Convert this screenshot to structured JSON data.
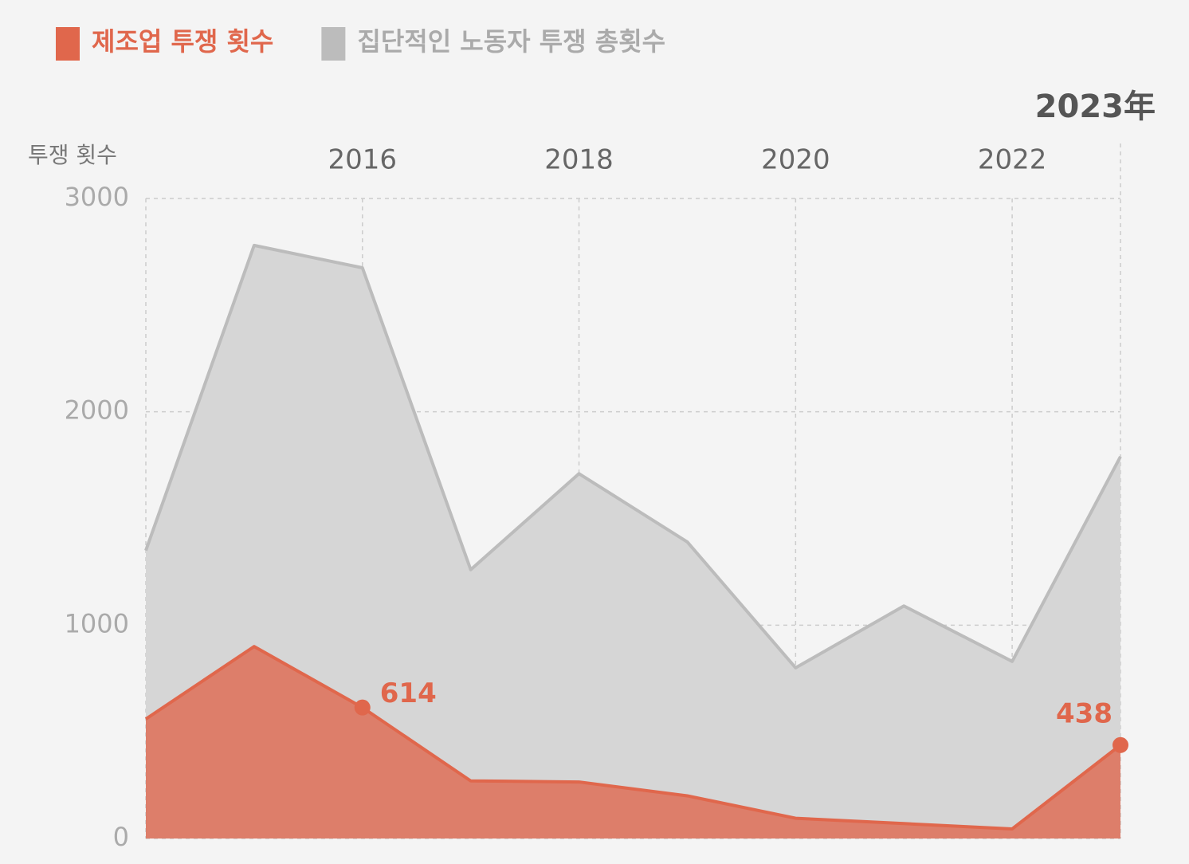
{
  "chart_data": {
    "type": "area",
    "y_axis_label": "투쟁 횟수",
    "x": [
      2014,
      2015,
      2016,
      2017,
      2018,
      2019,
      2020,
      2021,
      2022,
      2023
    ],
    "xlim": [
      2014,
      2023
    ],
    "xticks": [
      2016,
      2018,
      2020,
      2022,
      {
        "value": 2023,
        "label": "2023年"
      }
    ],
    "ylim": [
      0,
      3000
    ],
    "yticks": [
      0,
      1000,
      2000,
      3000
    ],
    "grid": true,
    "legend": "top-left",
    "series": [
      {
        "name": "집단적인 노동자 투쟁 총횟수",
        "color": "#bcbcbc",
        "fill": "#d6d6d6",
        "values": [
          1350,
          2780,
          2675,
          1260,
          1710,
          1390,
          800,
          1090,
          830,
          1790
        ]
      },
      {
        "name": "제조업 투쟁 횟수",
        "color": "#e0674c",
        "fill": "#dd7e6a",
        "values": [
          560,
          900,
          614,
          270,
          265,
          200,
          95,
          70,
          45,
          438
        ],
        "value_labels": [
          null,
          null,
          "614",
          null,
          null,
          null,
          null,
          null,
          null,
          "438"
        ]
      }
    ]
  }
}
